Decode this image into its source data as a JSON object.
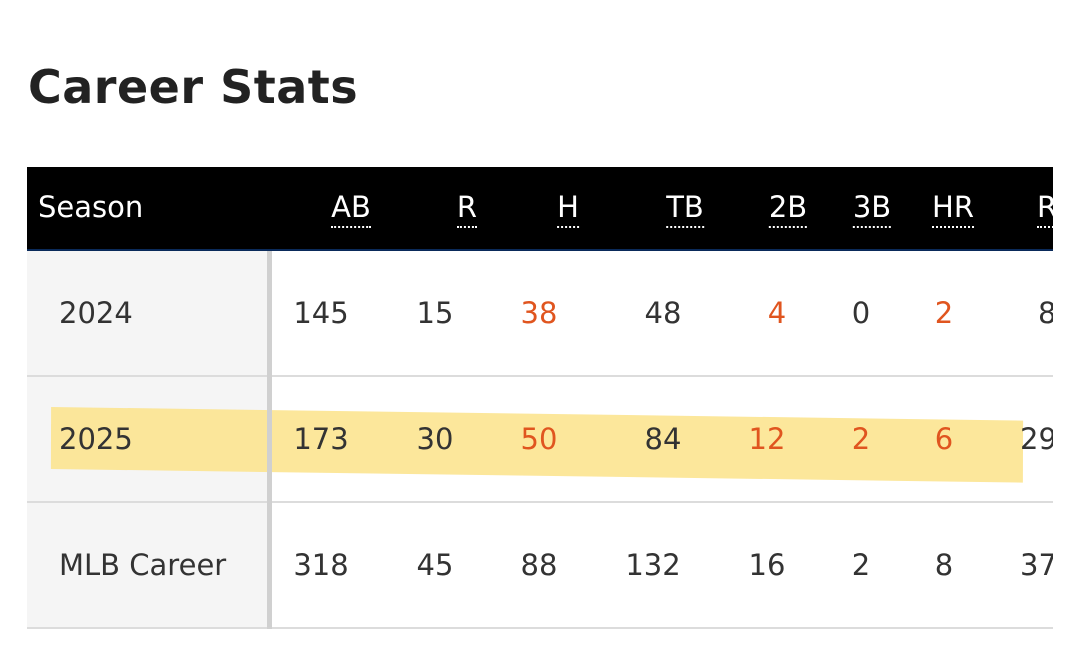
{
  "page": {
    "title": "Career Stats"
  },
  "table": {
    "headers": {
      "season": "Season",
      "ab": "AB",
      "r": "R",
      "h": "H",
      "tb": "TB",
      "2b": "2B",
      "3b": "3B",
      "hr": "HR",
      "rbi": "R"
    },
    "rows": [
      {
        "season": "2024",
        "ab": "145",
        "r": "15",
        "h": "38",
        "tb": "48",
        "2b": "4",
        "3b": "0",
        "hr": "2",
        "rbi": "8"
      },
      {
        "season": "2025",
        "ab": "173",
        "r": "30",
        "h": "50",
        "tb": "84",
        "2b": "12",
        "3b": "2",
        "hr": "6",
        "rbi": "29"
      },
      {
        "season": "MLB Career",
        "ab": "318",
        "r": "45",
        "h": "88",
        "tb": "132",
        "2b": "16",
        "3b": "2",
        "hr": "8",
        "rbi": "37"
      }
    ],
    "highlighted_row": "2025"
  },
  "colors": {
    "header_bg": "#000000",
    "accent_orange": "#e0551f",
    "highlight_yellow": "#fce38a",
    "season_col_bg": "#f5f5f5"
  }
}
